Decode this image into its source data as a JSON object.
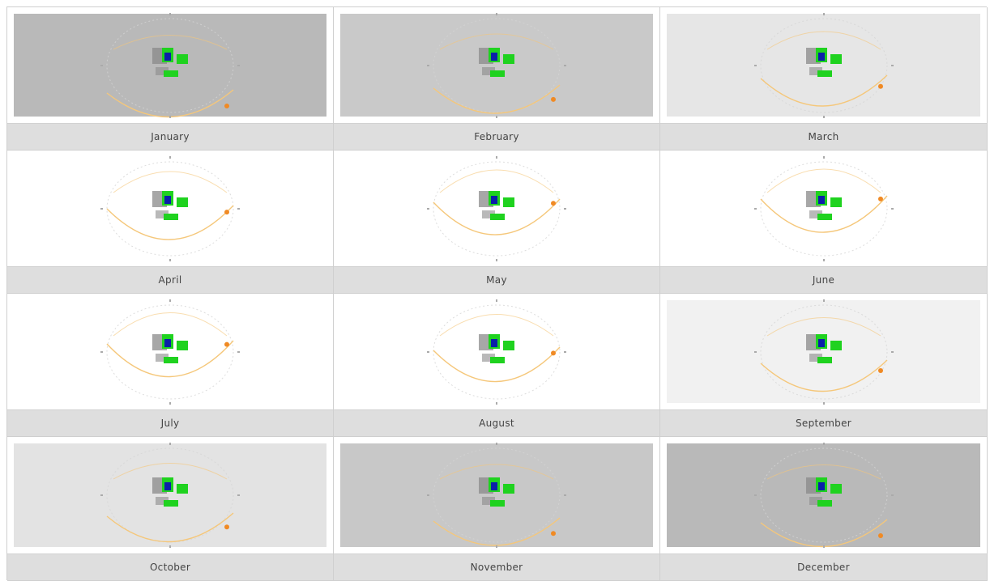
{
  "months": [
    {
      "label": "January",
      "bg": "#b9b9b9",
      "inset": true
    },
    {
      "label": "February",
      "bg": "#c9c9c9",
      "inset": true
    },
    {
      "label": "March",
      "bg": "#e6e6e6",
      "inset": true
    },
    {
      "label": "April",
      "bg": "#ffffff",
      "inset": false
    },
    {
      "label": "May",
      "bg": "#ffffff",
      "inset": false
    },
    {
      "label": "June",
      "bg": "#ffffff",
      "inset": false
    },
    {
      "label": "July",
      "bg": "#ffffff",
      "inset": false
    },
    {
      "label": "August",
      "bg": "#ffffff",
      "inset": false
    },
    {
      "label": "September",
      "bg": "#f1f1f1",
      "inset": true
    },
    {
      "label": "October",
      "bg": "#e3e3e3",
      "inset": true
    },
    {
      "label": "November",
      "bg": "#c8c8c8",
      "inset": true
    },
    {
      "label": "December",
      "bg": "#b9b9b9",
      "inset": true
    }
  ],
  "colors": {
    "sun_path": "#f5c77a",
    "sun": "#f08a24",
    "building_green": "#1fd21f",
    "building_blue": "#0b1fa8",
    "shadow": "#8a8a8a"
  }
}
